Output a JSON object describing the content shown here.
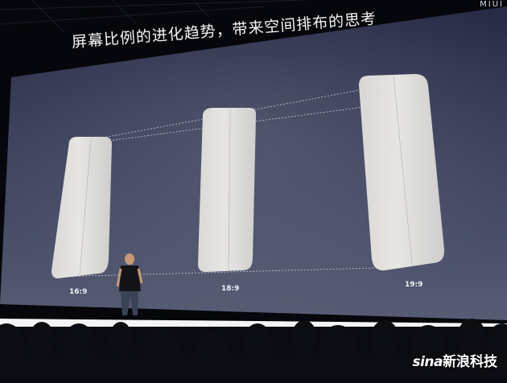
{
  "slide": {
    "title": "屏幕比例的进化趋势，带来空间排布的思考",
    "corner_text": "MIUI",
    "ratios": [
      "16:9",
      "18:9",
      "19:9"
    ]
  },
  "watermark": {
    "logo": "sina",
    "text": "新浪科技"
  },
  "colors": {
    "screen_gradient_top": "#2d3150",
    "screen_gradient_bottom": "#4f556f",
    "phone_fill": "#ece9e4",
    "floor_light": "#f4f4f7",
    "audience": "#0a0b11"
  }
}
